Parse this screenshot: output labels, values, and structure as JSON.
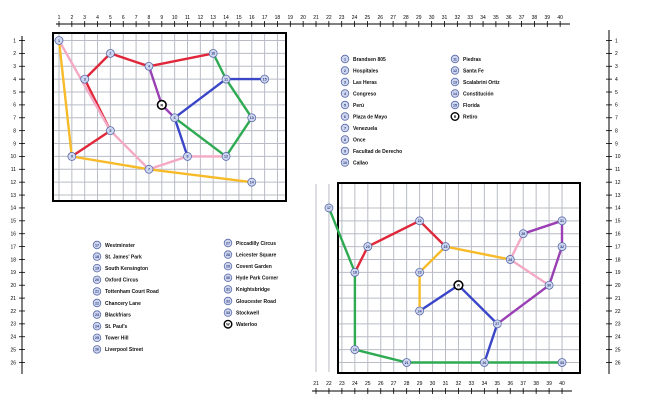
{
  "top_axis_labels": [
    "1",
    "2",
    "3",
    "4",
    "5",
    "6",
    "7",
    "8",
    "9",
    "10",
    "11",
    "12",
    "13",
    "14",
    "15",
    "16",
    "17",
    "18",
    "19",
    "20",
    "21",
    "22",
    "23",
    "24",
    "25",
    "26",
    "27",
    "28",
    "29",
    "30",
    "31",
    "32",
    "33",
    "34",
    "35",
    "36",
    "37",
    "38",
    "39",
    "40"
  ],
  "side_axis_labels": [
    "1",
    "2",
    "3",
    "4",
    "5",
    "6",
    "7",
    "8",
    "9",
    "10",
    "11",
    "12",
    "13",
    "14",
    "15",
    "16",
    "17",
    "18",
    "19",
    "20",
    "21",
    "22",
    "23",
    "24",
    "25",
    "26"
  ],
  "bottom_axis_labels": [
    "21",
    "22",
    "23",
    "24",
    "25",
    "26",
    "27",
    "28",
    "29",
    "30",
    "31",
    "32",
    "33",
    "34",
    "35",
    "36",
    "37",
    "38",
    "39",
    "40"
  ],
  "colors": {
    "red": "#e0283a",
    "purple": "#9a3fb4",
    "blue": "#3a46c8",
    "green": "#2eaa52",
    "pink": "#f4a9c4",
    "orange": "#f7bb2a",
    "node_fill": "#cfd7ef",
    "node_stroke": "#5a6aa8",
    "grid": "#b9bcc6"
  },
  "map_a": {
    "stations": [
      {
        "id": "1",
        "x": 1,
        "y": 1
      },
      {
        "id": "2",
        "x": 5,
        "y": 2
      },
      {
        "id": "3",
        "x": 3,
        "y": 4
      },
      {
        "id": "4",
        "x": 8,
        "y": 3
      },
      {
        "id": "5",
        "x": 5,
        "y": 8
      },
      {
        "id": "6",
        "x": 10,
        "y": 7
      },
      {
        "id": "7",
        "x": 8,
        "y": 11
      },
      {
        "id": "8",
        "x": 11,
        "y": 10
      },
      {
        "id": "9",
        "x": 2,
        "y": 10
      },
      {
        "id": "10",
        "x": 13,
        "y": 2
      },
      {
        "id": "11",
        "x": 14,
        "y": 4
      },
      {
        "id": "12",
        "x": 14,
        "y": 10
      },
      {
        "id": "13",
        "x": 16,
        "y": 7
      },
      {
        "id": "14",
        "x": 16,
        "y": 12
      },
      {
        "id": "15",
        "x": 17,
        "y": 4
      }
    ],
    "transfer": {
      "id": "R",
      "x": 9,
      "y": 6
    },
    "lines": [
      {
        "color": "red",
        "path": [
          [
            2,
            10
          ],
          [
            5,
            8
          ],
          [
            3,
            4
          ],
          [
            5,
            2
          ],
          [
            8,
            3
          ],
          [
            13,
            2
          ]
        ]
      },
      {
        "color": "purple",
        "path": [
          [
            8,
            3
          ],
          [
            9,
            6
          ],
          [
            10,
            7
          ]
        ]
      },
      {
        "color": "blue",
        "path": [
          [
            10,
            7
          ],
          [
            14,
            4
          ],
          [
            17,
            4
          ]
        ]
      },
      {
        "color": "blue",
        "path": [
          [
            10,
            7
          ],
          [
            11,
            10
          ]
        ]
      },
      {
        "color": "green",
        "path": [
          [
            13,
            2
          ],
          [
            14,
            4
          ],
          [
            16,
            7
          ],
          [
            14,
            10
          ],
          [
            10,
            7
          ]
        ]
      },
      {
        "color": "pink",
        "path": [
          [
            1,
            1
          ],
          [
            5,
            8
          ],
          [
            8,
            11
          ],
          [
            11,
            10
          ],
          [
            14,
            10
          ]
        ]
      },
      {
        "color": "orange",
        "path": [
          [
            1,
            1
          ],
          [
            2,
            10
          ],
          [
            8,
            11
          ],
          [
            16,
            12
          ]
        ]
      }
    ],
    "legend_col1": [
      {
        "num": "1",
        "name": "Brandsen 805"
      },
      {
        "num": "2",
        "name": "Hospitales"
      },
      {
        "num": "3",
        "name": "Las Heras"
      },
      {
        "num": "4",
        "name": "Congreso"
      },
      {
        "num": "5",
        "name": "Perú"
      },
      {
        "num": "6",
        "name": "Plaza de Mayo"
      },
      {
        "num": "7",
        "name": "Venezuela"
      },
      {
        "num": "8",
        "name": "Once"
      },
      {
        "num": "9",
        "name": "Facultad de Derecho"
      },
      {
        "num": "10",
        "name": "Callao"
      }
    ],
    "legend_col2": [
      {
        "num": "11",
        "name": "Piedras"
      },
      {
        "num": "12",
        "name": "Santa Fe"
      },
      {
        "num": "13",
        "name": "Scalabrini Ortiz"
      },
      {
        "num": "14",
        "name": "Constitución"
      },
      {
        "num": "15",
        "name": "Florida"
      },
      {
        "num": "R",
        "name": "Retiro"
      }
    ]
  },
  "map_b": {
    "stations": [
      {
        "id": "17",
        "x": 22,
        "y": 14
      },
      {
        "id": "18",
        "x": 24,
        "y": 19
      },
      {
        "id": "19",
        "x": 24,
        "y": 25
      },
      {
        "id": "20",
        "x": 25,
        "y": 17
      },
      {
        "id": "21",
        "x": 28,
        "y": 26
      },
      {
        "id": "22",
        "x": 29,
        "y": 15
      },
      {
        "id": "23",
        "x": 29,
        "y": 19
      },
      {
        "id": "24",
        "x": 29,
        "y": 22
      },
      {
        "id": "25",
        "x": 31,
        "y": 17
      },
      {
        "id": "26",
        "x": 34,
        "y": 26
      },
      {
        "id": "27",
        "x": 35,
        "y": 23
      },
      {
        "id": "28",
        "x": 36,
        "y": 18
      },
      {
        "id": "29",
        "x": 37,
        "y": 16
      },
      {
        "id": "30",
        "x": 39,
        "y": 20
      },
      {
        "id": "31",
        "x": 40,
        "y": 15
      },
      {
        "id": "32",
        "x": 40,
        "y": 17
      },
      {
        "id": "33",
        "x": 40,
        "y": 26
      }
    ],
    "transfer": {
      "id": "W",
      "x": 32,
      "y": 20
    },
    "lines": [
      {
        "color": "green",
        "path": [
          [
            22,
            14
          ],
          [
            24,
            19
          ],
          [
            24,
            25
          ],
          [
            28,
            26
          ],
          [
            34,
            26
          ],
          [
            40,
            26
          ]
        ]
      },
      {
        "color": "red",
        "path": [
          [
            24,
            19
          ],
          [
            25,
            17
          ],
          [
            29,
            15
          ],
          [
            31,
            17
          ]
        ]
      },
      {
        "color": "orange",
        "path": [
          [
            31,
            17
          ],
          [
            36,
            18
          ]
        ]
      },
      {
        "color": "orange",
        "path": [
          [
            31,
            17
          ],
          [
            29,
            19
          ],
          [
            29,
            22
          ]
        ]
      },
      {
        "color": "blue",
        "path": [
          [
            29,
            22
          ],
          [
            32,
            20
          ],
          [
            35,
            23
          ],
          [
            34,
            26
          ]
        ]
      },
      {
        "color": "purple",
        "path": [
          [
            35,
            23
          ],
          [
            39,
            20
          ],
          [
            40,
            17
          ],
          [
            40,
            15
          ],
          [
            37,
            16
          ]
        ]
      },
      {
        "color": "pink",
        "path": [
          [
            37,
            16
          ],
          [
            36,
            18
          ],
          [
            39,
            20
          ]
        ]
      }
    ],
    "legend_col1": [
      {
        "num": "17",
        "name": "Westminster"
      },
      {
        "num": "18",
        "name": "St. James' Park"
      },
      {
        "num": "19",
        "name": "South Kensington"
      },
      {
        "num": "20",
        "name": "Oxford Circus"
      },
      {
        "num": "21",
        "name": "Tottenham Court Road"
      },
      {
        "num": "22",
        "name": "Chancery Lane"
      },
      {
        "num": "23",
        "name": "Blackfriars"
      },
      {
        "num": "24",
        "name": "St. Paul's"
      },
      {
        "num": "25",
        "name": "Tower Hill"
      },
      {
        "num": "26",
        "name": "Liverpool Street"
      }
    ],
    "legend_col2": [
      {
        "num": "27",
        "name": "Piccadilly Circus"
      },
      {
        "num": "28",
        "name": "Leicester Square"
      },
      {
        "num": "29",
        "name": "Covent Garden"
      },
      {
        "num": "30",
        "name": "Hyde Park Corner"
      },
      {
        "num": "31",
        "name": "Knightsbridge"
      },
      {
        "num": "32",
        "name": "Gloucester Road"
      },
      {
        "num": "33",
        "name": "Stockwell"
      },
      {
        "num": "W",
        "name": "Waterloo"
      }
    ]
  }
}
